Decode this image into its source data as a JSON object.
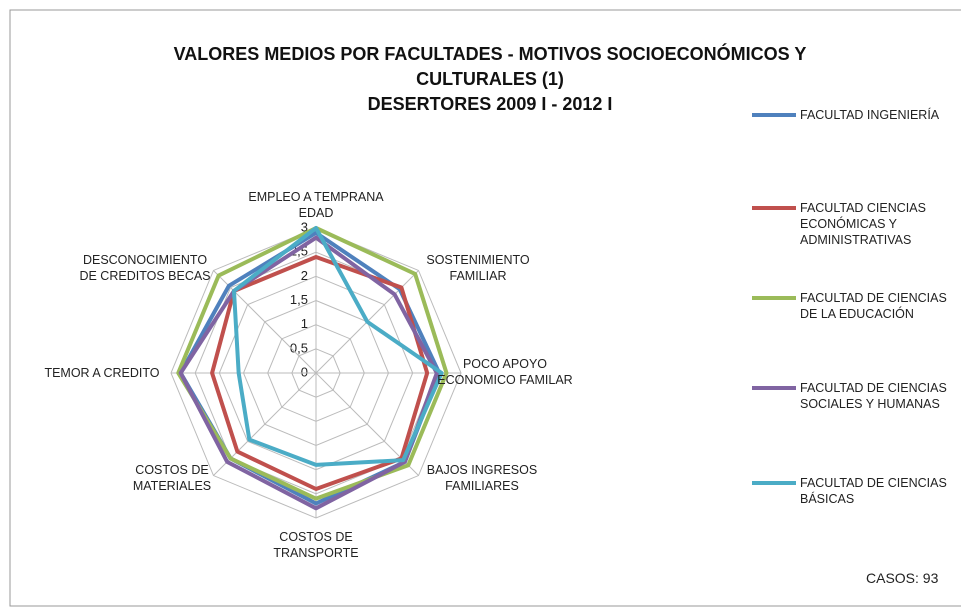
{
  "chart_data": {
    "type": "radar",
    "title": "VALORES MEDIOS POR FACULTADES - MOTIVOS  SOCIOECONÓMICOS Y CULTURALES (1)",
    "subtitle": "DESERTORES 2009 I - 2012  I",
    "categories": [
      "EMPLEO A TEMPRANA EDAD",
      "SOSTENIMIENTO FAMILIAR",
      "POCO APOYO ECONOMICO FAMILAR",
      "BAJOS INGRESOS FAMILIARES",
      "COSTOS DE TRANSPORTE",
      "COSTOS DE MATERIALES",
      "TEMOR A CREDITO",
      "DESCONOCIMIENTO DE CREDITOS BECAS"
    ],
    "series": [
      {
        "name": "FACULTAD INGENIERÍA",
        "color": "#4f81bd",
        "values": [
          2.9,
          2.45,
          2.55,
          2.6,
          2.7,
          2.5,
          2.8,
          2.55
        ]
      },
      {
        "name": "FACULTAD CIENCIAS ECONÓMICAS Y ADMINISTRATIVAS",
        "color": "#c0504d",
        "values": [
          2.4,
          2.5,
          2.3,
          2.5,
          2.4,
          2.3,
          2.15,
          2.4
        ]
      },
      {
        "name": "FACULTAD DE CIENCIAS DE LA EDUCACIÓN",
        "color": "#9bbb59",
        "values": [
          3.0,
          2.9,
          2.7,
          2.7,
          2.6,
          2.5,
          2.85,
          2.85
        ]
      },
      {
        "name": "FACULTAD DE CIENCIAS SOCIALES Y HUMANAS",
        "color": "#8064a2",
        "values": [
          2.8,
          2.3,
          2.5,
          2.6,
          2.8,
          2.6,
          2.8,
          2.4
        ]
      },
      {
        "name": "FACULTAD DE CIENCIAS BÁSICAS",
        "color": "#4bacc6",
        "values": [
          3.0,
          1.5,
          2.6,
          2.55,
          1.9,
          1.95,
          1.6,
          2.4
        ]
      }
    ],
    "ylim": [
      0,
      3
    ],
    "yticks": [
      0,
      {
        "value": 0.5,
        "label": "0,5"
      },
      1,
      {
        "value": 1.5,
        "label": "1,5"
      },
      2,
      {
        "value": 2.5,
        "label": "2,5"
      },
      3
    ],
    "grid": true,
    "legend": "right",
    "annotation": "CASOS: 93"
  }
}
